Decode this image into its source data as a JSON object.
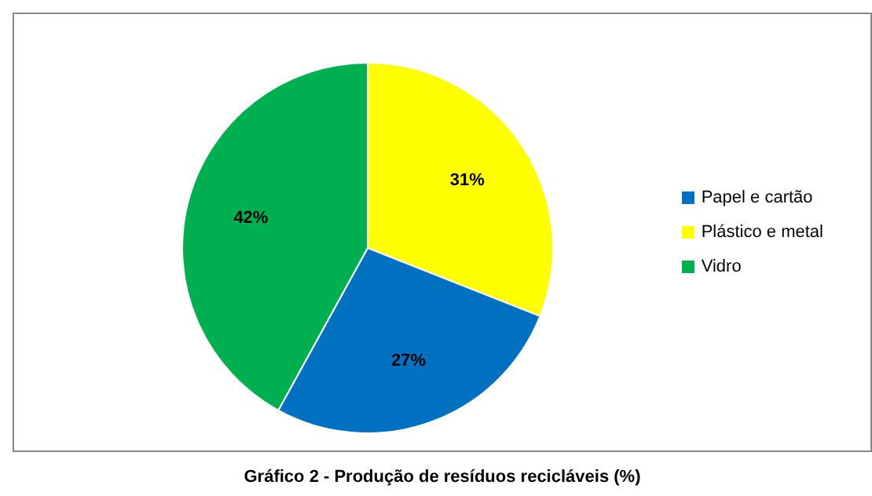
{
  "chart_data": {
    "type": "pie",
    "title": "Gráfico 2 - Produção de resíduos recicláveis (%)",
    "categories": [
      "Plástico e metal",
      "Papel e cartão",
      "Vidro"
    ],
    "values": [
      31,
      27,
      42
    ],
    "colors": [
      "#ffff00",
      "#0070c0",
      "#00b050"
    ],
    "value_labels": [
      "31%",
      "27%",
      "42%"
    ],
    "legend": "right"
  }
}
